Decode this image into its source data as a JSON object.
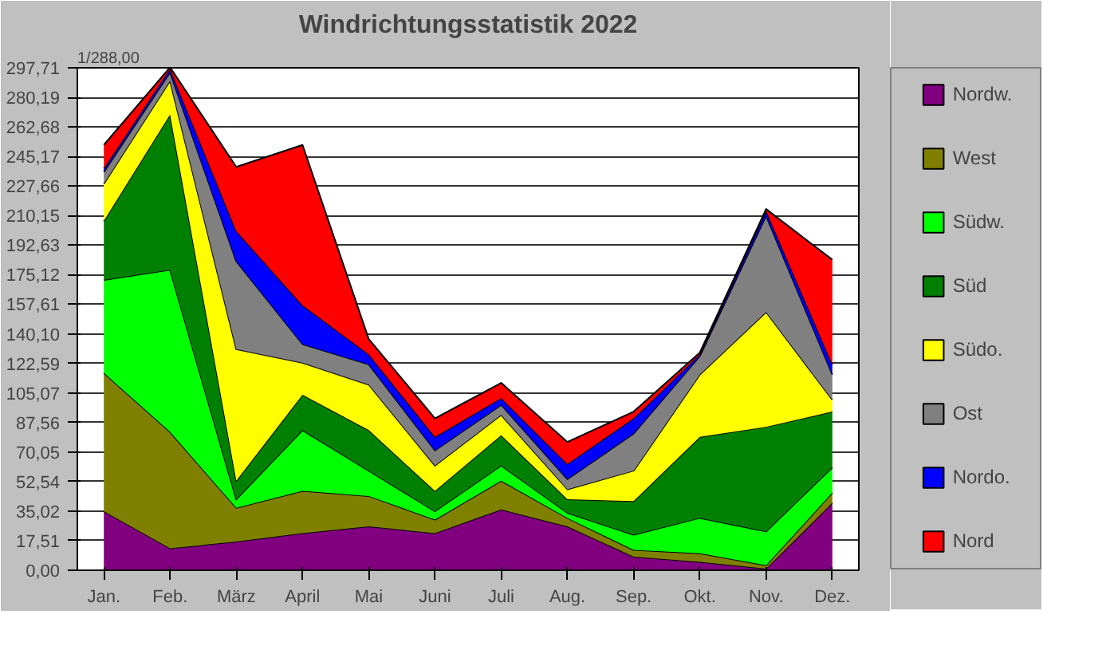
{
  "chart_data": {
    "type": "area",
    "stacked": true,
    "title": "Windrichtungsstatistik 2022",
    "categories": [
      "Jan.",
      "Feb.",
      "März",
      "April",
      "Mai",
      "Juni",
      "Juli",
      "Aug.",
      "Sep.",
      "Okt.",
      "Nov.",
      "Dez."
    ],
    "series": [
      {
        "name": "Nordw.",
        "color": "#800080",
        "values": [
          35,
          13,
          17,
          22,
          26,
          22,
          36,
          26,
          8,
          5,
          1,
          40
        ]
      },
      {
        "name": "West",
        "color": "#808000",
        "values": [
          82,
          69,
          20,
          25,
          18,
          8,
          17,
          5,
          4,
          5,
          2,
          6
        ]
      },
      {
        "name": "Südw.",
        "color": "#00ff00",
        "values": [
          55,
          96,
          5,
          36,
          15,
          5,
          9,
          3,
          9,
          21,
          20,
          15
        ]
      },
      {
        "name": "Süd",
        "color": "#008000",
        "values": [
          35,
          92,
          11,
          21,
          24,
          12,
          18,
          8,
          20,
          48,
          62,
          33
        ]
      },
      {
        "name": "Südo.",
        "color": "#ffff00",
        "values": [
          22,
          20,
          78,
          19,
          27,
          15,
          12,
          6,
          18,
          37,
          68,
          7
        ]
      },
      {
        "name": "Ost",
        "color": "#808080",
        "values": [
          7,
          5,
          52,
          11,
          12,
          9,
          6,
          6,
          22,
          11,
          57,
          15
        ]
      },
      {
        "name": "Nordo.",
        "color": "#0000ff",
        "values": [
          2,
          2,
          18,
          23,
          6,
          8,
          4,
          9,
          9,
          1,
          3,
          6
        ]
      },
      {
        "name": "Nord",
        "color": "#ff0000",
        "values": [
          14,
          1,
          38,
          95,
          9,
          11,
          9,
          13,
          4,
          1,
          1,
          62
        ]
      }
    ],
    "ylim": [
      0,
      297.71
    ],
    "yticks": [
      {
        "value": 0,
        "label": "0,00"
      },
      {
        "value": 17.51,
        "label": "17,51"
      },
      {
        "value": 35.02,
        "label": "35,02"
      },
      {
        "value": 52.54,
        "label": "52,54"
      },
      {
        "value": 70.05,
        "label": "70,05"
      },
      {
        "value": 87.56,
        "label": "87,56"
      },
      {
        "value": 105.07,
        "label": "105,07"
      },
      {
        "value": 122.59,
        "label": "122,59"
      },
      {
        "value": 140.1,
        "label": "140,10"
      },
      {
        "value": 157.61,
        "label": "157,61"
      },
      {
        "value": 175.12,
        "label": "175,12"
      },
      {
        "value": 192.63,
        "label": "192,63"
      },
      {
        "value": 210.15,
        "label": "210,15"
      },
      {
        "value": 227.66,
        "label": "227,66"
      },
      {
        "value": 245.17,
        "label": "245,17"
      },
      {
        "value": 262.68,
        "label": "262,68"
      },
      {
        "value": 280.19,
        "label": "280,19"
      },
      {
        "value": 297.71,
        "label": "297,71"
      }
    ],
    "grid": "y",
    "legend": "right",
    "annotations": [
      "1/288,00"
    ]
  }
}
